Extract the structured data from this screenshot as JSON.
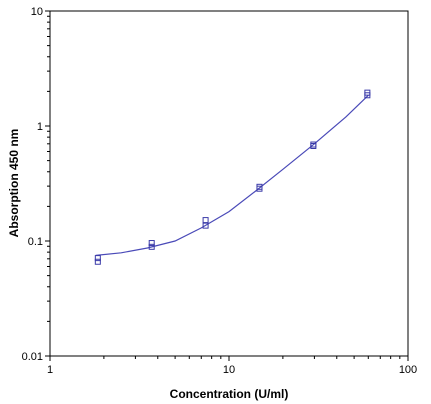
{
  "chart_data": {
    "type": "scatter",
    "xlabel": "Concentration (U/ml)",
    "ylabel": "Absorption 450 nm",
    "xscale": "log",
    "yscale": "log",
    "xlim": [
      1,
      100
    ],
    "ylim": [
      0.01,
      10
    ],
    "x_ticks": [
      1,
      10,
      100
    ],
    "x_tick_labels": [
      "1",
      "10",
      "100"
    ],
    "y_ticks": [
      0.01,
      0.1,
      1,
      10
    ],
    "y_tick_labels": [
      "0.01",
      "0.1",
      "1",
      "10"
    ],
    "grid": false,
    "marker_color": "#3a3aa8",
    "curve_color": "#4a4ab8",
    "points": [
      {
        "x": 1.85,
        "y": 0.066
      },
      {
        "x": 1.85,
        "y": 0.071
      },
      {
        "x": 3.7,
        "y": 0.089
      },
      {
        "x": 3.7,
        "y": 0.096
      },
      {
        "x": 7.4,
        "y": 0.136
      },
      {
        "x": 7.4,
        "y": 0.152
      },
      {
        "x": 14.8,
        "y": 0.285
      },
      {
        "x": 14.8,
        "y": 0.296
      },
      {
        "x": 29.6,
        "y": 0.67
      },
      {
        "x": 29.6,
        "y": 0.69
      },
      {
        "x": 59.3,
        "y": 1.85
      },
      {
        "x": 59.3,
        "y": 1.95
      }
    ],
    "fit_curve": {
      "x": [
        1.8,
        2.5,
        3.5,
        5,
        7,
        10,
        14,
        20,
        30,
        45,
        60
      ],
      "y": [
        0.075,
        0.079,
        0.087,
        0.1,
        0.13,
        0.18,
        0.27,
        0.42,
        0.7,
        1.2,
        1.85
      ]
    }
  }
}
